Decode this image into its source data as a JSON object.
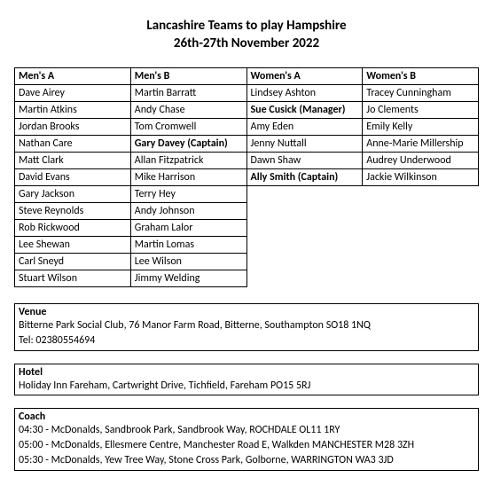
{
  "title": "Lancashire Teams to play Hampshire",
  "subtitle": "26th-27th November 2022",
  "team_headers": [
    "Men's A",
    "Men's B",
    "Women's A",
    "Women's B"
  ],
  "rows": [
    [
      {
        "t": "Dave Airey"
      },
      {
        "t": "Martin Barratt"
      },
      {
        "t": "Lindsey Ashton"
      },
      {
        "t": "Tracey Cunningham"
      }
    ],
    [
      {
        "t": "Martin Atkins"
      },
      {
        "t": "Andy Chase"
      },
      {
        "t": "Sue Cusick (Manager)",
        "b": true
      },
      {
        "t": "Jo Clements"
      }
    ],
    [
      {
        "t": "Jordan Brooks"
      },
      {
        "t": "Tom Cromwell"
      },
      {
        "t": "Amy Eden"
      },
      {
        "t": "Emily Kelly"
      }
    ],
    [
      {
        "t": "Nathan Care"
      },
      {
        "t": "Gary Davey (Captain)",
        "b": true
      },
      {
        "t": "Jenny Nuttall"
      },
      {
        "t": "Anne-Marie Millership"
      }
    ],
    [
      {
        "t": "Matt Clark"
      },
      {
        "t": "Allan Fitzpatrick"
      },
      {
        "t": "Dawn Shaw"
      },
      {
        "t": "Audrey Underwood"
      }
    ],
    [
      {
        "t": "David Evans"
      },
      {
        "t": "Mike Harrison"
      },
      {
        "t": "Ally Smith (Captain)",
        "b": true
      },
      {
        "t": "Jackie Wilkinson"
      }
    ],
    [
      {
        "t": "Gary Jackson"
      },
      {
        "t": "Terry Hey"
      },
      null,
      null
    ],
    [
      {
        "t": "Steve Reynolds"
      },
      {
        "t": "Andy Johnson"
      },
      null,
      null
    ],
    [
      {
        "t": "Rob Rickwood"
      },
      {
        "t": "Graham Lalor"
      },
      null,
      null
    ],
    [
      {
        "t": "Lee Shewan"
      },
      {
        "t": "Martin Lomas"
      },
      null,
      null
    ],
    [
      {
        "t": "Carl Sneyd"
      },
      {
        "t": "Lee Wilson"
      },
      null,
      null
    ],
    [
      {
        "t": "Stuart Wilson"
      },
      {
        "t": "Jimmy Welding"
      },
      null,
      null
    ]
  ],
  "venue": {
    "heading": "Venue",
    "lines": [
      "Bitterne Park Social Club, 76 Manor Farm Road, Bitterne, Southampton SO18 1NQ",
      "Tel: 02380554694"
    ]
  },
  "hotel": {
    "heading": "Hotel",
    "lines": [
      "Holiday Inn Fareham, Cartwright Drive, Tichfield, Fareham PO15 5RJ"
    ]
  },
  "coach": {
    "heading": "Coach",
    "lines": [
      "04:30 - McDonalds, Sandbrook Park, Sandbrook Way, ROCHDALE OL11 1RY",
      "05:00 - McDonalds, Ellesmere Centre, Manchester Road E, Walkden MANCHESTER M28 3ZH",
      "05:30 - McDonalds, Yew Tree Way, Stone Cross Park, Golborne, WARRINGTON WA3 3JD"
    ]
  }
}
